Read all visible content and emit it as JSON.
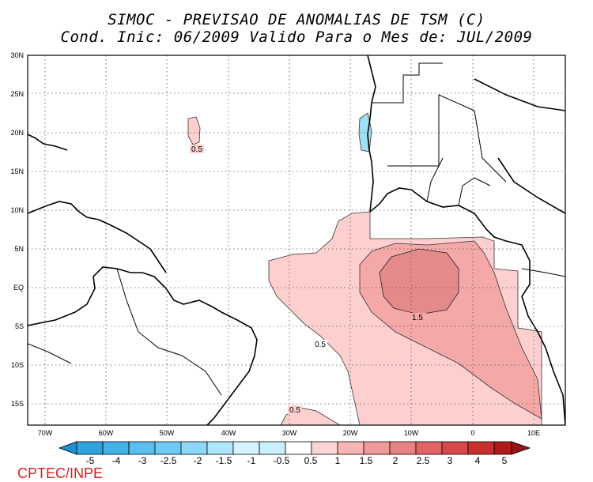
{
  "header": {
    "title_line1": "SIMOC - PREVISAO DE ANOMALIAS DE TSM (C)",
    "title_line2": "Cond. Inic: 06/2009   Valido Para o Mes de: JUL/2009"
  },
  "map": {
    "region": "Tropical Atlantic",
    "lat_ticks": [
      "30N",
      "25N",
      "20N",
      "15N",
      "10N",
      "5N",
      "EQ",
      "5S",
      "10S",
      "15S"
    ],
    "lon_ticks": [
      "70W",
      "60W",
      "50W",
      "40W",
      "30W",
      "20W",
      "10W",
      "0",
      "10E"
    ],
    "grid": "dotted",
    "contour_labels": [
      "0.5",
      "0.5",
      "1.5",
      "0.5"
    ]
  },
  "legend": {
    "labels": [
      "-5",
      "-4",
      "-3",
      "-2.5",
      "-2",
      "-1.5",
      "-1",
      "-0.5",
      "0.5",
      "1",
      "1.5",
      "2",
      "2.5",
      "3",
      "4",
      "5"
    ],
    "colors": [
      "#1e8fd0",
      "#2ea3de",
      "#44b2e8",
      "#5abfef",
      "#6fcbf4",
      "#8dd8f8",
      "#aee6fc",
      "#d6f4ff",
      "#ffffff",
      "#fdd4d4",
      "#f6b4b4",
      "#f09a9a",
      "#e88383",
      "#e26464",
      "#d84848",
      "#c83030",
      "#b01c1c"
    ]
  },
  "footer": {
    "credit": "CPTEC/INPE"
  }
}
